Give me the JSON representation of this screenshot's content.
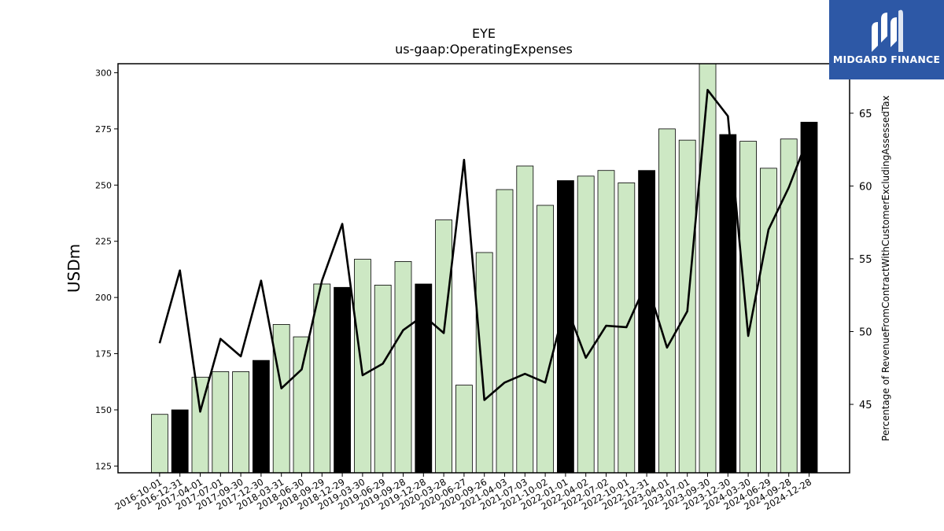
{
  "chart_data": {
    "type": "bar",
    "title": "EYE",
    "subtitle": "us-gaap:OperatingExpenses",
    "ylabel": "USDm",
    "ylabel_right": "Percentage of RevenueFromContractWithCustomerExcludingAssessedTax",
    "ylim": [
      122,
      304
    ],
    "ylim_right": [
      40.3,
      68.4
    ],
    "yticks": [
      125,
      150,
      175,
      200,
      225,
      250,
      275,
      300
    ],
    "yticks_right": [
      45,
      50,
      55,
      60,
      65
    ],
    "categories": [
      "2016-10-01",
      "2016-12-31",
      "2017-04-01",
      "2017-07-01",
      "2017-09-30",
      "2017-12-30",
      "2018-03-31",
      "2018-06-30",
      "2018-09-29",
      "2018-12-29",
      "2019-03-30",
      "2019-06-29",
      "2019-09-28",
      "2019-12-28",
      "2020-03-28",
      "2020-06-27",
      "2020-09-26",
      "2021-04-03",
      "2021-07-03",
      "2021-10-02",
      "2022-01-01",
      "2022-04-02",
      "2022-07-02",
      "2022-10-01",
      "2022-12-31",
      "2023-04-01",
      "2023-07-01",
      "2023-09-30",
      "2023-12-30",
      "2024-03-30",
      "2024-06-29",
      "2024-09-28",
      "2024-12-28"
    ],
    "series": [
      {
        "type": "bar",
        "values": [
          148,
          150,
          164.5,
          167,
          167,
          172,
          188,
          182.5,
          206,
          204.5,
          217,
          205.5,
          216,
          206,
          234.5,
          161,
          220,
          248,
          258.5,
          241,
          252,
          254,
          256.5,
          251,
          256.5,
          275,
          270,
          304,
          272.5,
          269.5,
          257.5,
          270.5,
          278
        ],
        "highlight": [
          false,
          true,
          false,
          false,
          false,
          true,
          false,
          false,
          false,
          true,
          false,
          false,
          false,
          true,
          false,
          false,
          false,
          false,
          false,
          false,
          true,
          false,
          false,
          false,
          true,
          false,
          false,
          false,
          true,
          false,
          false,
          false,
          true
        ]
      },
      {
        "type": "line",
        "axis": "right",
        "values": [
          49.2,
          54.2,
          44.5,
          49.5,
          48.3,
          53.5,
          46.1,
          47.4,
          53.5,
          57.4,
          47.0,
          47.8,
          50.1,
          51.1,
          49.9,
          61.8,
          45.3,
          46.5,
          47.1,
          46.5,
          51.9,
          48.2,
          50.4,
          50.3,
          53.4,
          48.9,
          51.4,
          66.6,
          64.8,
          49.7,
          57.0,
          59.9,
          63.5
        ]
      }
    ],
    "grid": false,
    "colors": {
      "bar": "#cde8c4",
      "bar_highlight": "#000000",
      "line": "#000000",
      "edge": "#000000"
    }
  },
  "logo": {
    "text": "MIDGARD FINANCE",
    "background": "#2d58a6"
  }
}
